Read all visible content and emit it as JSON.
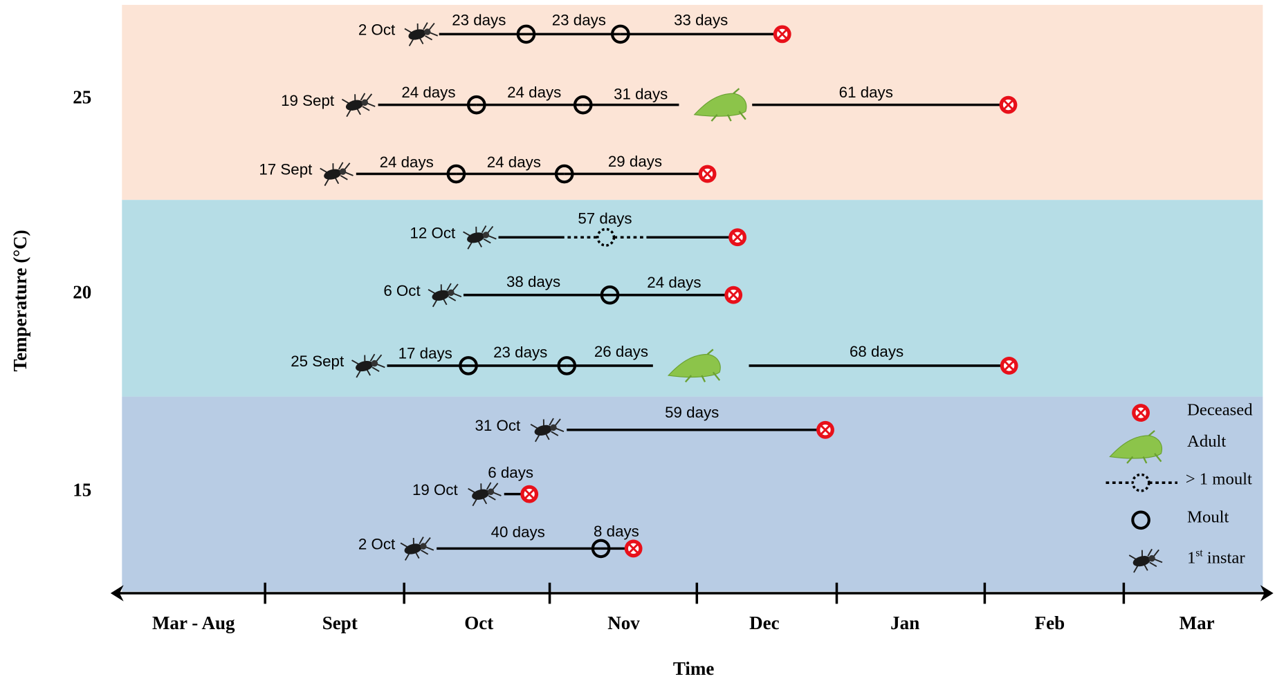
{
  "y_axis_title": "Temperature (°C)",
  "x_axis_title": "Time",
  "months": [
    "Mar - Aug",
    "Sept",
    "Oct",
    "Nov",
    "Dec",
    "Jan",
    "Feb",
    "Mar"
  ],
  "temperatures": [
    "25",
    "20",
    "15"
  ],
  "rows": [
    {
      "start": "2 Oct",
      "durations": [
        "23 days",
        "23 days",
        "33 days"
      ]
    },
    {
      "start": "19 Sept",
      "durations": [
        "24 days",
        "24 days",
        "31 days",
        "61 days"
      ]
    },
    {
      "start": "17 Sept",
      "durations": [
        "24 days",
        "24 days",
        "29 days"
      ]
    },
    {
      "start": "12 Oct",
      "durations": [
        "57 days"
      ]
    },
    {
      "start": "6 Oct",
      "durations": [
        "38 days",
        "24 days"
      ]
    },
    {
      "start": "25 Sept",
      "durations": [
        "17 days",
        "23 days",
        "26 days",
        "68 days"
      ]
    },
    {
      "start": "31 Oct",
      "durations": [
        "59 days"
      ]
    },
    {
      "start": "19 Oct",
      "durations": [
        "6 days"
      ]
    },
    {
      "start": "2 Oct",
      "durations": [
        "40 days",
        "8 days"
      ]
    }
  ],
  "legend": {
    "deceased": "Deceased",
    "adult": "Adult",
    "multi_moult": "> 1 moult",
    "moult": "Moult",
    "instar": {
      "number": "1",
      "suffix": "st",
      "rest": " instar"
    }
  }
}
